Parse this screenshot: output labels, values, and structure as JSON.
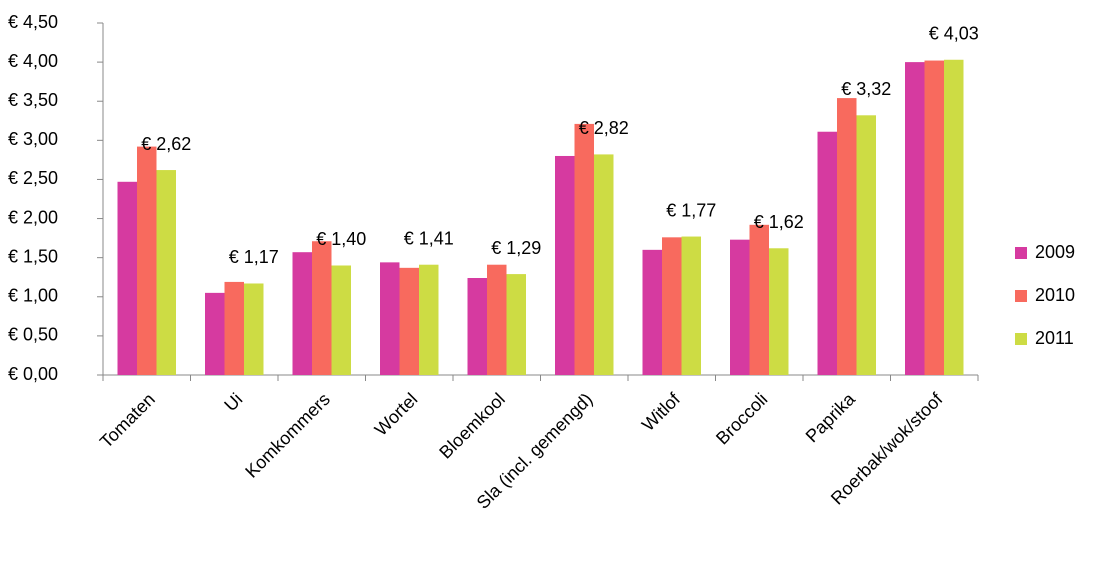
{
  "chart_data": {
    "type": "bar",
    "categories": [
      "Tomaten",
      "Ui",
      "Komkommers",
      "Wortel",
      "Bloemkool",
      "Sla (incl. gemengd)",
      "Witlof",
      "Broccoli",
      "Paprika",
      "Roerbak/wok/stoof"
    ],
    "series": [
      {
        "name": "2009",
        "color": "#d63aa0",
        "values": [
          2.47,
          1.05,
          1.57,
          1.44,
          1.24,
          2.8,
          1.6,
          1.73,
          3.11,
          4.0
        ]
      },
      {
        "name": "2010",
        "color": "#f86a5e",
        "values": [
          2.92,
          1.19,
          1.71,
          1.37,
          1.41,
          3.21,
          1.76,
          1.92,
          3.54,
          4.02
        ]
      },
      {
        "name": "2011",
        "color": "#cddc44",
        "values": [
          2.62,
          1.17,
          1.4,
          1.41,
          1.29,
          2.82,
          1.77,
          1.62,
          3.32,
          4.03
        ],
        "value_labels": [
          "€ 2,62",
          "€ 1,17",
          "€ 1,40",
          "€ 1,41",
          "€ 1,29",
          "€ 2,82",
          "€ 1,77",
          "€ 1,62",
          "€ 3,32",
          "€ 4,03"
        ]
      }
    ],
    "ylim": [
      0,
      4.5
    ],
    "yticks": [
      {
        "value": 0,
        "label": "€ 0,00"
      },
      {
        "value": 0.5,
        "label": "€ 0,50"
      },
      {
        "value": 1,
        "label": "€ 1,00"
      },
      {
        "value": 1.5,
        "label": "€ 1,50"
      },
      {
        "value": 2,
        "label": "€ 2,00"
      },
      {
        "value": 2.5,
        "label": "€ 2,50"
      },
      {
        "value": 3,
        "label": "€ 3,00"
      },
      {
        "value": 3.5,
        "label": "€ 3,50"
      },
      {
        "value": 4,
        "label": "€ 4,00"
      },
      {
        "value": 4.5,
        "label": "€ 4,50"
      }
    ],
    "grid": false,
    "legend": "right"
  }
}
